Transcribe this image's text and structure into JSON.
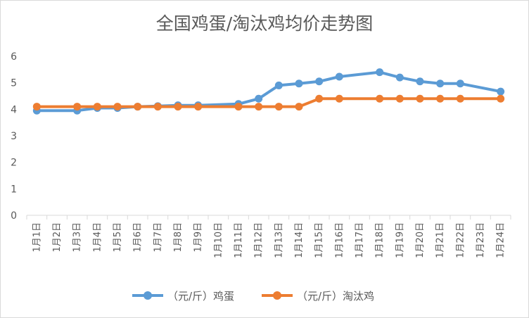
{
  "chart_data": {
    "type": "line",
    "title": "全国鸡蛋/淘汰鸡均价走势图",
    "categories": [
      "1月1日",
      "1月2日",
      "1月3日",
      "1月4日",
      "1月5日",
      "1月6日",
      "1月7日",
      "1月8日",
      "1月9日",
      "1月10日",
      "1月11日",
      "1月12日",
      "1月13日",
      "1月14日",
      "1月15日",
      "1月16日",
      "1月17日",
      "1月18日",
      "1月19日",
      "1月20日",
      "1月21日",
      "1月22日",
      "1月23日",
      "1月24日"
    ],
    "ylim": [
      0,
      6
    ],
    "yticks": [
      "0",
      "1",
      "2",
      "3",
      "4",
      "5",
      "6"
    ],
    "grid": false,
    "legend": "bottom",
    "series": [
      {
        "name": "（元/斤）鸡蛋",
        "color": "#5B9BD5",
        "values": [
          3.95,
          null,
          3.95,
          4.05,
          4.05,
          4.1,
          4.12,
          4.15,
          4.15,
          null,
          4.2,
          4.4,
          4.9,
          4.97,
          5.05,
          5.23,
          null,
          5.4,
          5.2,
          5.05,
          4.97,
          4.97,
          null,
          4.67
        ]
      },
      {
        "name": "（元/斤）淘汰鸡",
        "color": "#ED7D31",
        "values": [
          4.1,
          null,
          4.1,
          4.1,
          4.1,
          4.1,
          4.1,
          4.1,
          4.1,
          null,
          4.1,
          4.1,
          4.1,
          4.1,
          4.4,
          4.4,
          null,
          4.4,
          4.4,
          4.4,
          4.4,
          4.4,
          null,
          4.4
        ]
      }
    ]
  }
}
